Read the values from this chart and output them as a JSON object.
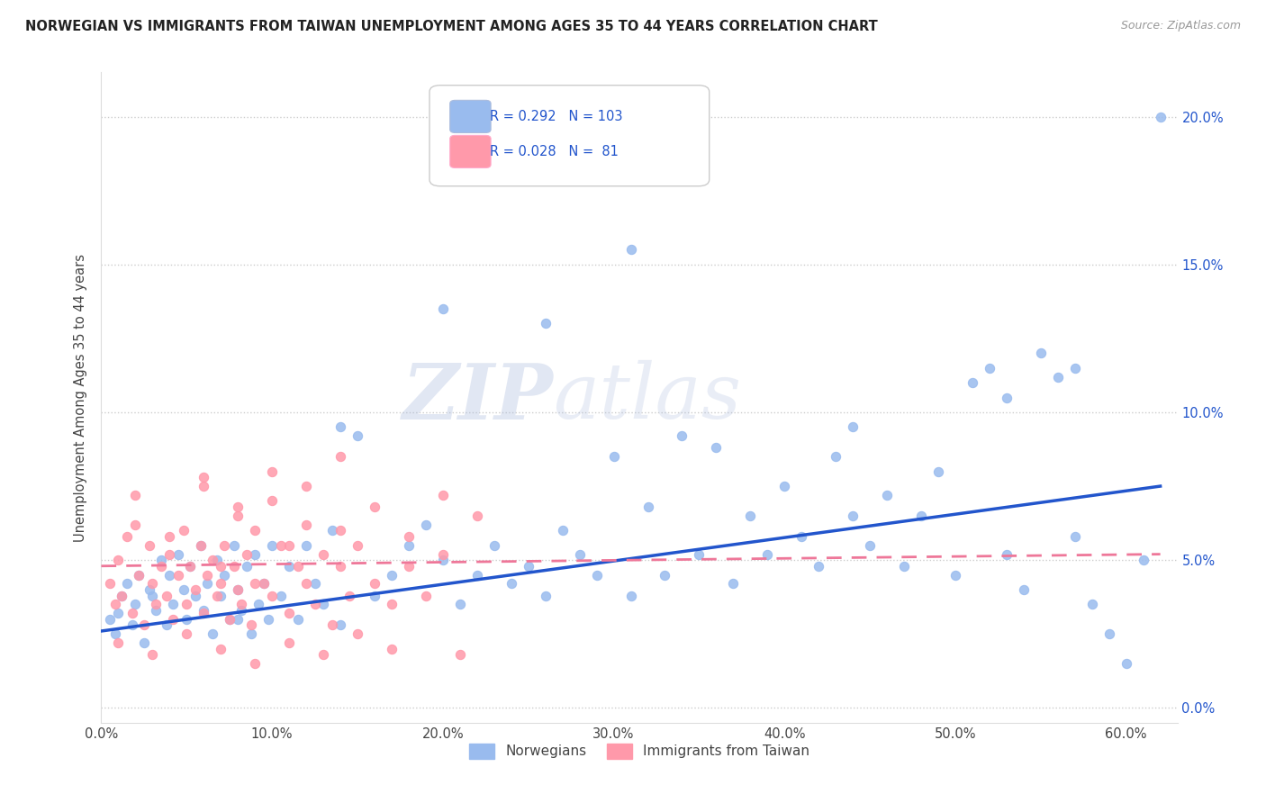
{
  "title": "NORWEGIAN VS IMMIGRANTS FROM TAIWAN UNEMPLOYMENT AMONG AGES 35 TO 44 YEARS CORRELATION CHART",
  "source": "Source: ZipAtlas.com",
  "ylabel": "Unemployment Among Ages 35 to 44 years",
  "xlim": [
    0.0,
    0.63
  ],
  "ylim": [
    -0.005,
    0.215
  ],
  "watermark_zip": "ZIP",
  "watermark_atlas": "atlas",
  "blue_color": "#99BBEE",
  "pink_color": "#FF99AA",
  "trend_blue_color": "#2255CC",
  "trend_pink_color": "#EE7799",
  "blue_R": 0.292,
  "pink_R": 0.028,
  "blue_N": 103,
  "pink_N": 81,
  "blue_trend_x0": 0.0,
  "blue_trend_y0": 0.026,
  "blue_trend_x1": 0.62,
  "blue_trend_y1": 0.075,
  "pink_trend_x0": 0.0,
  "pink_trend_y0": 0.048,
  "pink_trend_x1": 0.62,
  "pink_trend_y1": 0.052,
  "blue_x": [
    0.005,
    0.008,
    0.01,
    0.012,
    0.015,
    0.018,
    0.02,
    0.022,
    0.025,
    0.028,
    0.03,
    0.032,
    0.035,
    0.038,
    0.04,
    0.042,
    0.045,
    0.048,
    0.05,
    0.052,
    0.055,
    0.058,
    0.06,
    0.062,
    0.065,
    0.068,
    0.07,
    0.072,
    0.075,
    0.078,
    0.08,
    0.082,
    0.085,
    0.088,
    0.09,
    0.092,
    0.095,
    0.098,
    0.1,
    0.105,
    0.11,
    0.115,
    0.12,
    0.125,
    0.13,
    0.135,
    0.14,
    0.15,
    0.16,
    0.17,
    0.18,
    0.19,
    0.2,
    0.21,
    0.22,
    0.23,
    0.24,
    0.25,
    0.26,
    0.27,
    0.28,
    0.29,
    0.3,
    0.31,
    0.32,
    0.33,
    0.34,
    0.35,
    0.36,
    0.37,
    0.38,
    0.39,
    0.4,
    0.41,
    0.42,
    0.43,
    0.44,
    0.45,
    0.46,
    0.47,
    0.48,
    0.49,
    0.5,
    0.51,
    0.52,
    0.53,
    0.54,
    0.55,
    0.56,
    0.57,
    0.58,
    0.59,
    0.6,
    0.61,
    0.62,
    0.53,
    0.57,
    0.44,
    0.31,
    0.26,
    0.2,
    0.14,
    0.08
  ],
  "blue_y": [
    0.03,
    0.025,
    0.032,
    0.038,
    0.042,
    0.028,
    0.035,
    0.045,
    0.022,
    0.04,
    0.038,
    0.033,
    0.05,
    0.028,
    0.045,
    0.035,
    0.052,
    0.04,
    0.03,
    0.048,
    0.038,
    0.055,
    0.033,
    0.042,
    0.025,
    0.05,
    0.038,
    0.045,
    0.03,
    0.055,
    0.04,
    0.033,
    0.048,
    0.025,
    0.052,
    0.035,
    0.042,
    0.03,
    0.055,
    0.038,
    0.048,
    0.03,
    0.055,
    0.042,
    0.035,
    0.06,
    0.028,
    0.092,
    0.038,
    0.045,
    0.055,
    0.062,
    0.05,
    0.035,
    0.045,
    0.055,
    0.042,
    0.048,
    0.038,
    0.06,
    0.052,
    0.045,
    0.085,
    0.038,
    0.068,
    0.045,
    0.092,
    0.052,
    0.088,
    0.042,
    0.065,
    0.052,
    0.075,
    0.058,
    0.048,
    0.085,
    0.065,
    0.055,
    0.072,
    0.048,
    0.065,
    0.08,
    0.045,
    0.11,
    0.115,
    0.052,
    0.04,
    0.12,
    0.112,
    0.058,
    0.035,
    0.025,
    0.015,
    0.05,
    0.2,
    0.105,
    0.115,
    0.095,
    0.155,
    0.13,
    0.135,
    0.095,
    0.03
  ],
  "pink_x": [
    0.005,
    0.008,
    0.01,
    0.012,
    0.015,
    0.018,
    0.02,
    0.022,
    0.025,
    0.028,
    0.03,
    0.032,
    0.035,
    0.038,
    0.04,
    0.042,
    0.045,
    0.048,
    0.05,
    0.052,
    0.055,
    0.058,
    0.06,
    0.062,
    0.065,
    0.068,
    0.07,
    0.072,
    0.075,
    0.078,
    0.08,
    0.082,
    0.085,
    0.088,
    0.09,
    0.095,
    0.1,
    0.105,
    0.11,
    0.115,
    0.12,
    0.125,
    0.13,
    0.135,
    0.14,
    0.145,
    0.15,
    0.16,
    0.17,
    0.18,
    0.19,
    0.2,
    0.06,
    0.08,
    0.1,
    0.12,
    0.14,
    0.02,
    0.04,
    0.06,
    0.08,
    0.1,
    0.12,
    0.14,
    0.16,
    0.18,
    0.2,
    0.22,
    0.01,
    0.03,
    0.05,
    0.07,
    0.09,
    0.11,
    0.13,
    0.15,
    0.17,
    0.21,
    0.07,
    0.09,
    0.11
  ],
  "pink_y": [
    0.042,
    0.035,
    0.05,
    0.038,
    0.058,
    0.032,
    0.062,
    0.045,
    0.028,
    0.055,
    0.042,
    0.035,
    0.048,
    0.038,
    0.052,
    0.03,
    0.045,
    0.06,
    0.035,
    0.048,
    0.04,
    0.055,
    0.032,
    0.045,
    0.05,
    0.038,
    0.042,
    0.055,
    0.03,
    0.048,
    0.04,
    0.035,
    0.052,
    0.028,
    0.06,
    0.042,
    0.038,
    0.055,
    0.032,
    0.048,
    0.042,
    0.035,
    0.052,
    0.028,
    0.048,
    0.038,
    0.055,
    0.042,
    0.035,
    0.048,
    0.038,
    0.052,
    0.075,
    0.068,
    0.08,
    0.062,
    0.085,
    0.072,
    0.058,
    0.078,
    0.065,
    0.07,
    0.075,
    0.06,
    0.068,
    0.058,
    0.072,
    0.065,
    0.022,
    0.018,
    0.025,
    0.02,
    0.015,
    0.022,
    0.018,
    0.025,
    0.02,
    0.018,
    0.048,
    0.042,
    0.055
  ]
}
